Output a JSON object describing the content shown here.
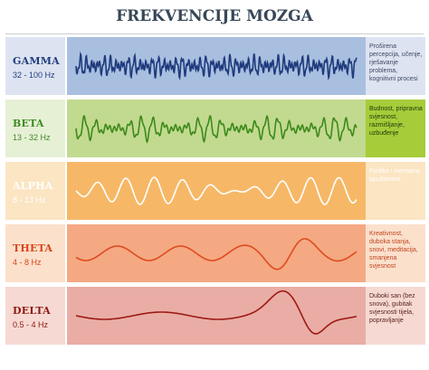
{
  "title": "FREKVENCIJE MOZGA",
  "bands": [
    {
      "name": "GAMMA",
      "freq": "32 - 100 Hz",
      "desc": "Proširena percepcija, učenje, rješavanje problema, kognitivni procesi",
      "label_bg": "#dde3f1",
      "wave_bg": "#a9bfdf",
      "desc_bg": "#dde3f1",
      "wave_color": "#1f3a7d",
      "name_color": "#233f7d",
      "desc_color": "#3e4a66"
    },
    {
      "name": "BETA",
      "freq": "13 - 32 Hz",
      "desc": "Budnost, pripravna svjesnost, razmišljanje, uzbuđenje",
      "label_bg": "#e6f0d5",
      "wave_bg": "#c2da8f",
      "desc_bg": "#a6cc3a",
      "wave_color": "#3d8a1c",
      "name_color": "#3f8a25",
      "desc_color": "#1f3a0a"
    },
    {
      "name": "ALPHA",
      "freq": "8 - 13 Hz",
      "desc": "Fizička i mentalna opuštenost",
      "label_bg": "#fbe5c3",
      "wave_bg": "#f6b867",
      "desc_bg": "#fbe5c3",
      "wave_color": "#ffffff",
      "name_color": "#ffffff",
      "desc_color": "#ffffff"
    },
    {
      "name": "THETA",
      "freq": "4 - 8 Hz",
      "desc": "Kreativnost, duboka stanja, snovi, meditacija, smanjena svjesnost",
      "label_bg": "#fbe0cc",
      "wave_bg": "#f4a983",
      "desc_bg": "#fbe0cc",
      "wave_color": "#e04a1e",
      "name_color": "#d84516",
      "desc_color": "#c0451e"
    },
    {
      "name": "DELTA",
      "freq": "0.5 - 4 Hz",
      "desc": "Duboki san (bez snova), gubitak svjesnosti tijela, popravljanje",
      "label_bg": "#f6d9d3",
      "wave_bg": "#e9ada5",
      "desc_bg": "#f6d9d3",
      "wave_color": "#9e1a14",
      "name_color": "#8e1912",
      "desc_color": "#5a1e18"
    }
  ]
}
